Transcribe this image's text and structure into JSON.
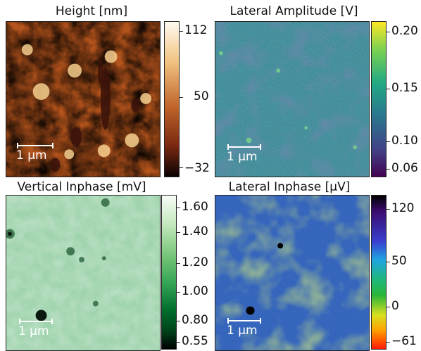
{
  "panels": [
    {
      "title": "Height [nm]",
      "colorbar_ticks": [
        "112",
        "50",
        "−32"
      ],
      "colors": {
        "low": "#1a0a05",
        "mid": "#b8501a",
        "high": "#fff6e8"
      }
    },
    {
      "title": "Lateral Amplitude [V]",
      "colorbar_ticks": [
        "0.20",
        "0.15",
        "0.10",
        "0.06"
      ],
      "colors": {
        "low": "#440154",
        "mid": "#21918c",
        "high": "#fde725"
      }
    },
    {
      "title": "Vertical Inphase [mV]",
      "colorbar_ticks": [
        "1.60",
        "1.40",
        "1.20",
        "1.00",
        "0.80",
        "0.55"
      ],
      "colors": {
        "low": "#000000",
        "mid": "#3c9a5f",
        "high": "#ffffff"
      }
    },
    {
      "title": "Lateral Inphase [µV]",
      "colorbar_ticks": [
        "120",
        "50",
        "0",
        "−61"
      ],
      "colors": {
        "low": "#ff0000",
        "mid": "#2ab53a",
        "high": "#000000"
      }
    }
  ],
  "scale_bar_label": "1 µm"
}
